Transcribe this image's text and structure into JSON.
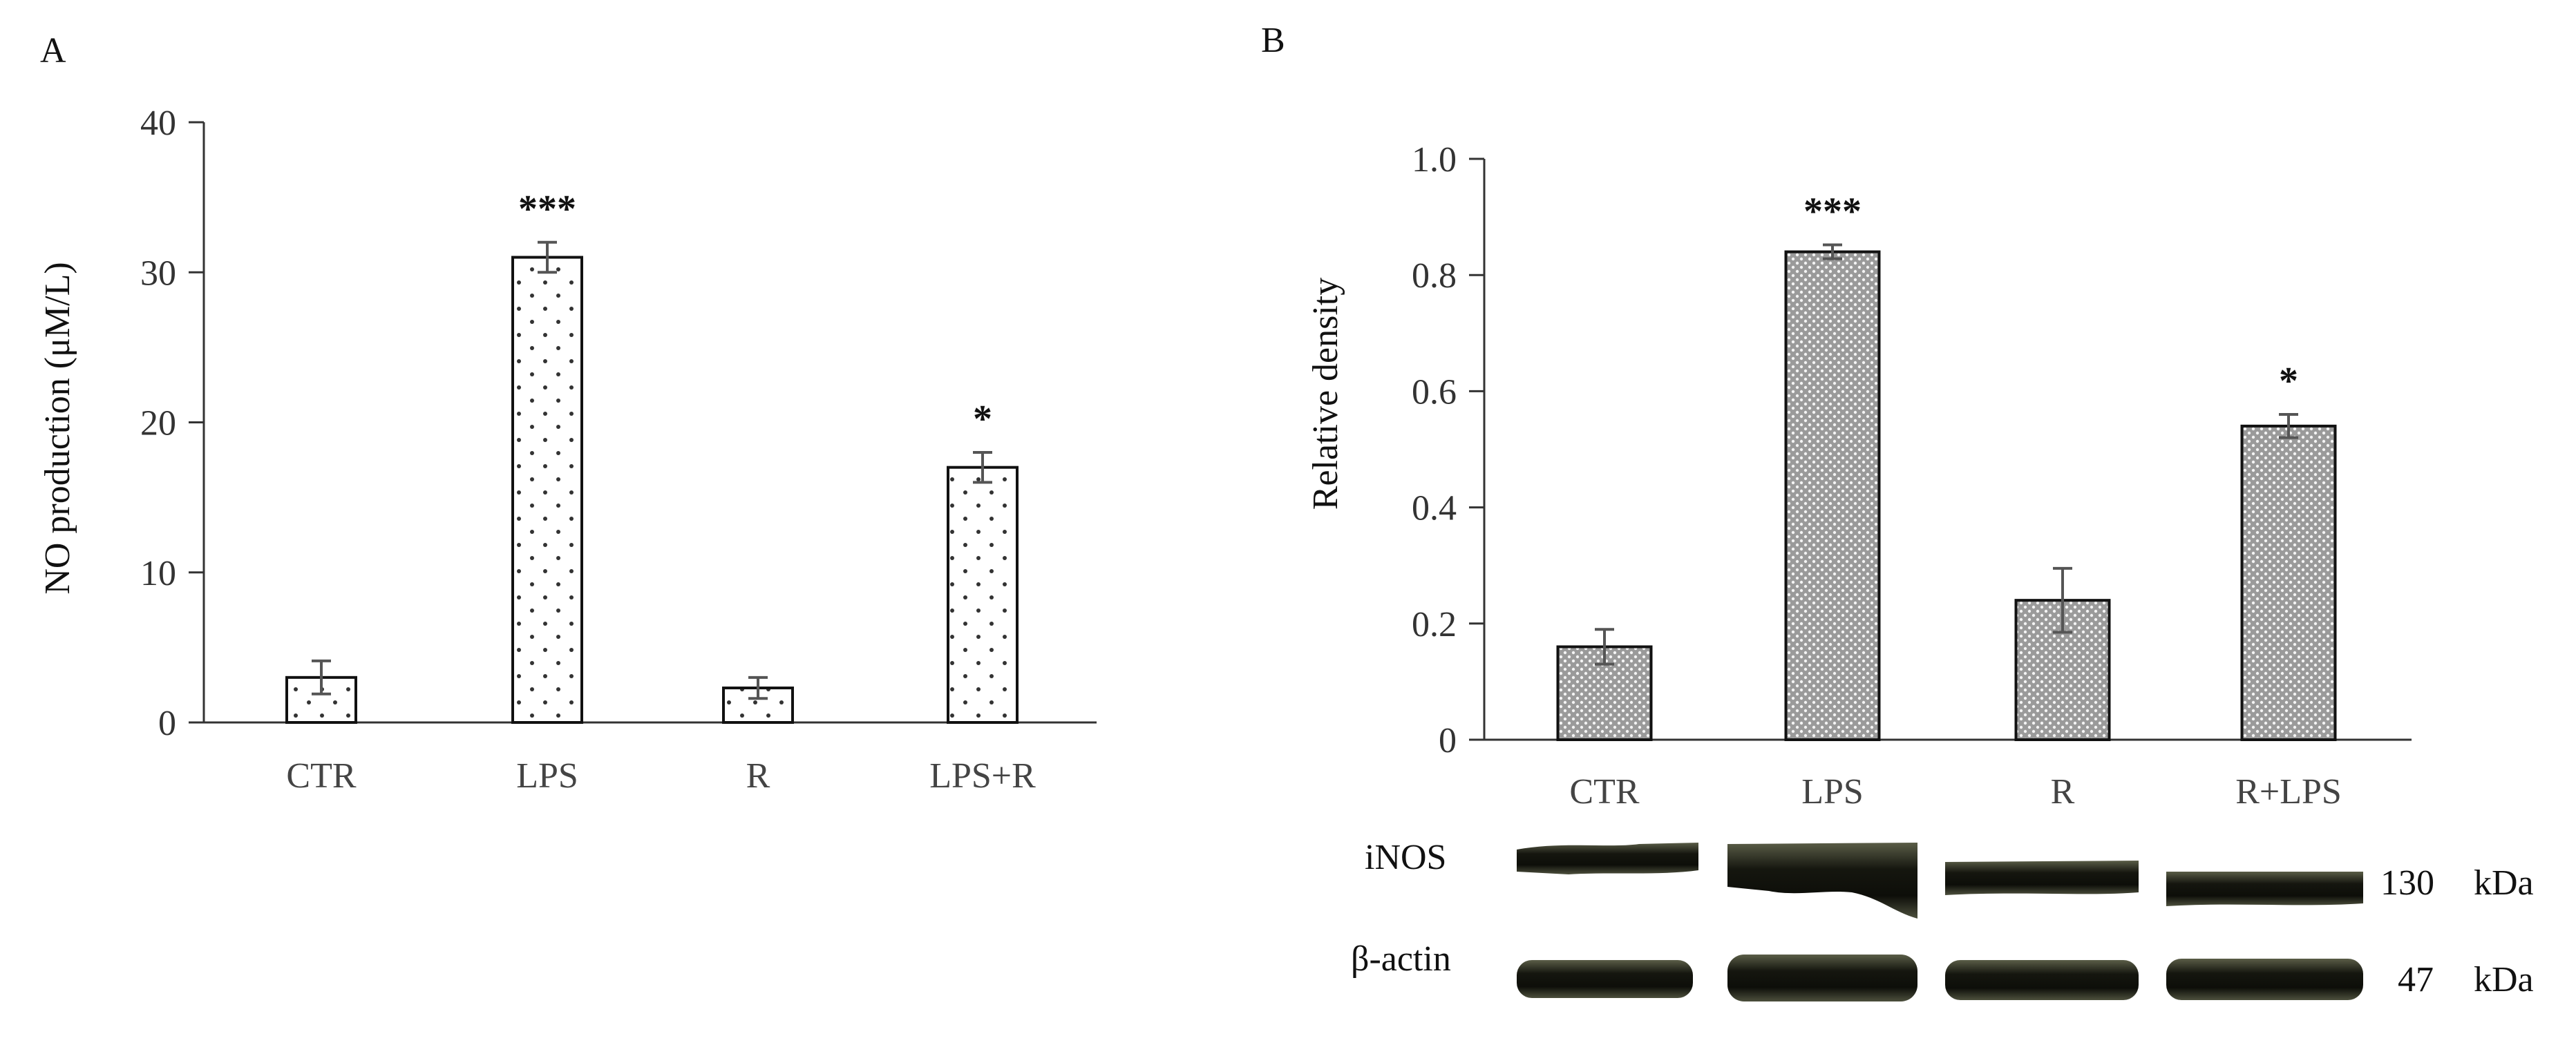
{
  "chart_data": [
    {
      "type": "bar",
      "panel_label": "A",
      "title": "",
      "xlabel": "",
      "ylabel": "NO production (μM/L)",
      "ylim": [
        0,
        40
      ],
      "yticks": [
        "0",
        "10",
        "20",
        "30",
        "40"
      ],
      "categories": [
        "CTR",
        "LPS",
        "R",
        "LPS+R"
      ],
      "series": [
        {
          "values": [
            3,
            31,
            2.3,
            17
          ],
          "errors": [
            1.1,
            1.0,
            0.7,
            1.0
          ],
          "significance": [
            "",
            "***",
            "",
            "*"
          ]
        }
      ],
      "pattern": "dots-sparse",
      "grid": false,
      "legend": "none"
    },
    {
      "type": "bar",
      "panel_label": "B",
      "title": "",
      "xlabel": "",
      "ylabel": "Relative density",
      "ylim": [
        0,
        1.0
      ],
      "yticks": [
        "0",
        "0.2",
        "0.4",
        "0.6",
        "0.8",
        "1.0"
      ],
      "categories": [
        "CTR",
        "LPS",
        "R",
        "R+LPS"
      ],
      "series": [
        {
          "values": [
            0.16,
            0.84,
            0.24,
            0.54
          ],
          "errors": [
            0.03,
            0.012,
            0.055,
            0.02
          ],
          "significance": [
            "",
            "***",
            "",
            "*"
          ]
        }
      ],
      "pattern": "dots-dense",
      "grid": false,
      "legend": "none"
    }
  ],
  "blot": {
    "rows": [
      {
        "label": "iNOS",
        "size": "130",
        "unit": "kDa"
      },
      {
        "label": "β-actin",
        "size": "47",
        "unit": "kDa"
      }
    ]
  },
  "colors": {
    "axis": "#333333",
    "bar_fill": "#ffffff",
    "bar_stroke": "#111111",
    "band": "#1a1c14"
  }
}
